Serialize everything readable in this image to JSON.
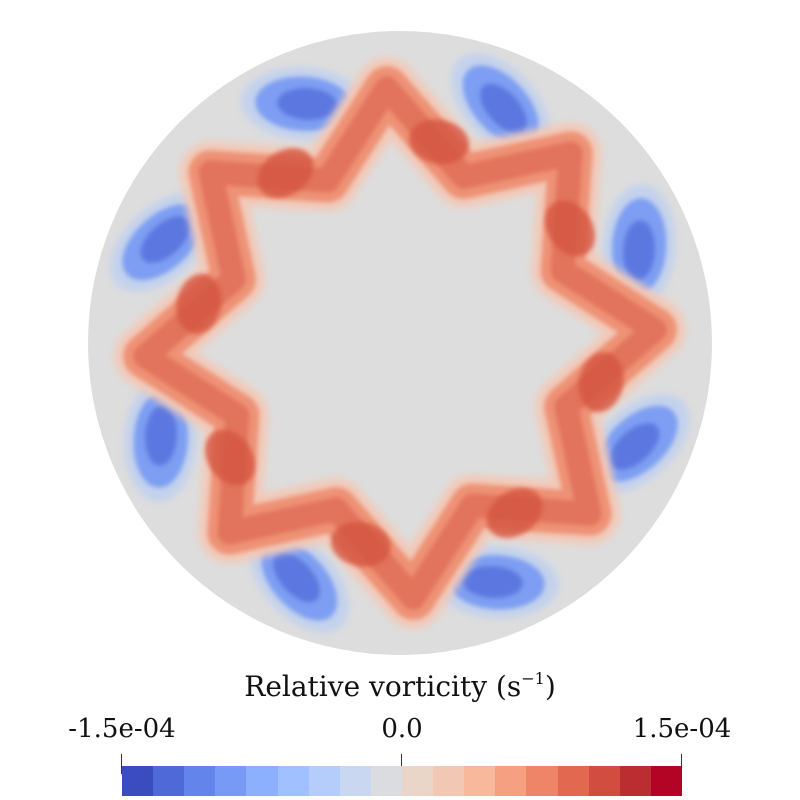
{
  "colorbar": {
    "title_text": "Relative vorticity (s",
    "title_exponent": "−1",
    "title_close": ")",
    "tick_min": "-1.5e-04",
    "tick_mid": "0.0",
    "tick_max": "1.5e-04",
    "colors": [
      "#3b4cc0",
      "#4f69d8",
      "#6384eb",
      "#779af7",
      "#8caffe",
      "#a1c0ff",
      "#b5cdfa",
      "#c9d7f0",
      "#dadce0",
      "#ead5c9",
      "#f2c8b4",
      "#f7b89c",
      "#f5a081",
      "#ee8468",
      "#e2694f",
      "#d14d3f",
      "#ba2e32",
      "#b40426"
    ]
  },
  "field": {
    "disk_color": "#dddddd",
    "wave_count": 8
  }
}
